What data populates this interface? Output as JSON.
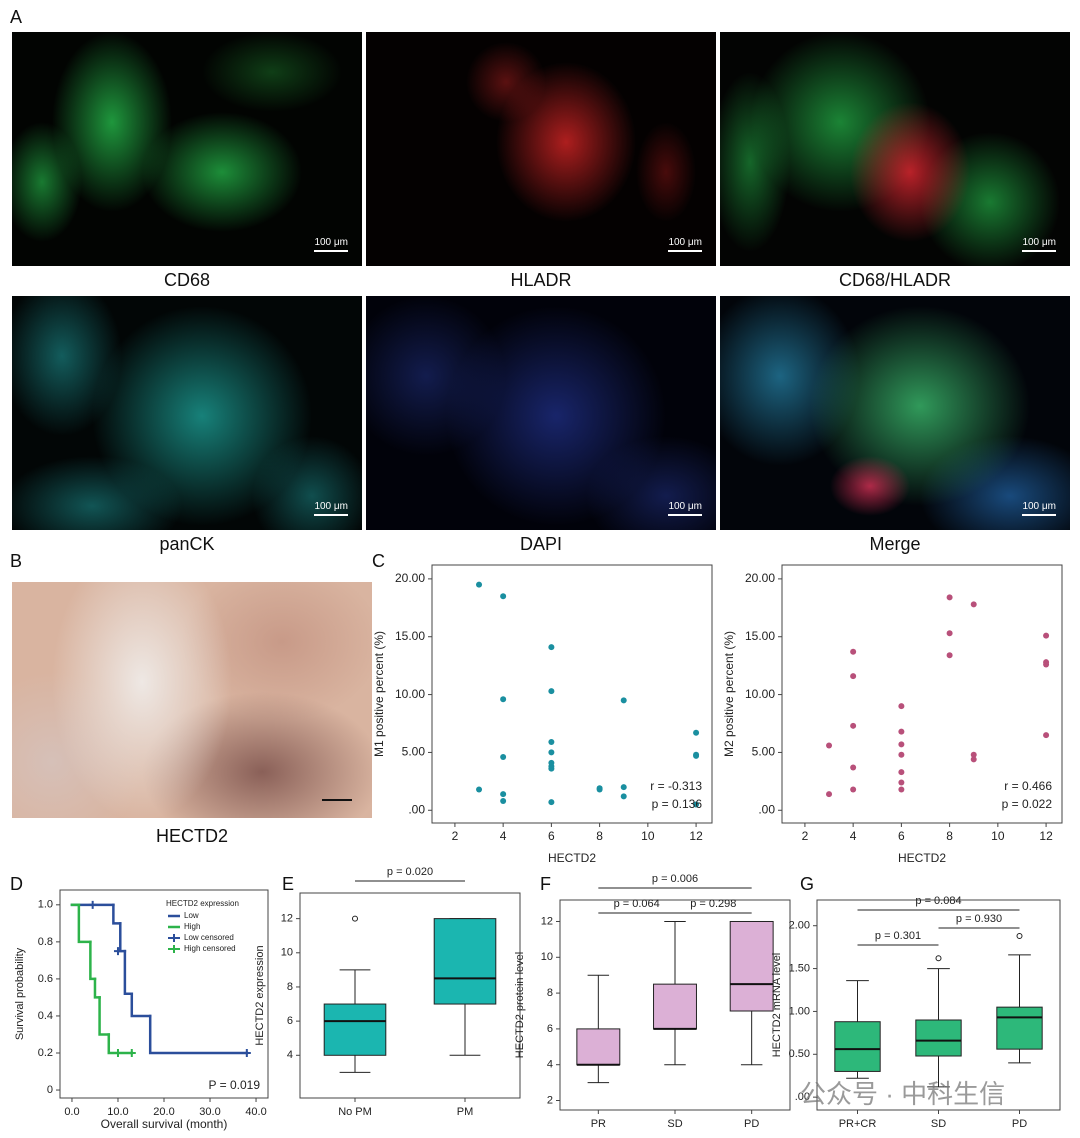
{
  "panel_labels": [
    "A",
    "B",
    "C",
    "D",
    "E",
    "F",
    "G"
  ],
  "images": [
    {
      "caption": "CD68",
      "scale_bar": "100 μm"
    },
    {
      "caption": "HLADR",
      "scale_bar": "100 μm"
    },
    {
      "caption": "CD68/HLADR",
      "scale_bar": "100 μm"
    },
    {
      "caption": "panCK",
      "scale_bar": "100 μm"
    },
    {
      "caption": "DAPI",
      "scale_bar": "100 μm"
    },
    {
      "caption": "Merge",
      "scale_bar": "100 μm"
    }
  ],
  "ihc_image": {
    "caption": "HECTD2"
  },
  "watermark": "公众号 · 中科生信",
  "chart_data": [
    {
      "type": "scatter",
      "x_label": "HECTD2",
      "y_label": "M1 positive percent (%)",
      "color": "#1a8fa0",
      "x": [
        3,
        3,
        4,
        4,
        4,
        4,
        4,
        6,
        6,
        6,
        6,
        6,
        6,
        6,
        6,
        8,
        8,
        9,
        9,
        9,
        12,
        12,
        12,
        12
      ],
      "values": [
        19.5,
        1.8,
        18.5,
        9.6,
        4.6,
        1.4,
        0.8,
        14.1,
        10.3,
        5.9,
        5.0,
        4.1,
        3.8,
        3.6,
        0.7,
        1.9,
        1.8,
        9.5,
        2.0,
        1.2,
        6.7,
        4.8,
        4.7,
        0.5
      ],
      "xlim": [
        1.05,
        12.66
      ],
      "ylim": [
        -1.1,
        21.2
      ],
      "xticks": [
        2,
        4,
        6,
        8,
        10,
        12
      ],
      "yticks": [
        {
          "value": 0,
          "label": ".00"
        },
        {
          "value": 5,
          "label": "5.00"
        },
        {
          "value": 10,
          "label": "10.00"
        },
        {
          "value": 15,
          "label": "15.00"
        },
        {
          "value": 20,
          "label": "20.00"
        }
      ],
      "annotations": [
        "r = -0.313",
        "p = 0.136"
      ]
    },
    {
      "type": "scatter",
      "x_label": "HECTD2",
      "y_label": "M2 positive percent (%)",
      "color": "#b8507a",
      "x": [
        3,
        3,
        4,
        4,
        4,
        4,
        4,
        6,
        6,
        6,
        6,
        6,
        6,
        6,
        8,
        8,
        8,
        9,
        9,
        9,
        12,
        12,
        12,
        12
      ],
      "values": [
        5.6,
        1.4,
        13.7,
        11.6,
        7.3,
        3.7,
        1.8,
        9.0,
        6.8,
        5.7,
        4.8,
        3.3,
        2.4,
        1.8,
        18.4,
        15.3,
        13.4,
        17.8,
        4.8,
        4.4,
        15.1,
        12.8,
        12.6,
        6.5
      ],
      "xlim": [
        1.05,
        12.66
      ],
      "ylim": [
        -1.1,
        21.2
      ],
      "xticks": [
        2,
        4,
        6,
        8,
        10,
        12
      ],
      "yticks": [
        {
          "value": 0,
          "label": ".00"
        },
        {
          "value": 5,
          "label": "5.00"
        },
        {
          "value": 10,
          "label": "10.00"
        },
        {
          "value": 15,
          "label": "15.00"
        },
        {
          "value": 20,
          "label": "20.00"
        }
      ],
      "annotations": [
        "r = 0.466",
        "p = 0.022"
      ]
    },
    {
      "type": "km",
      "x_label": "Overall survival (month)",
      "y_label": "Survival probability",
      "legend_title": "HECTD2 expression",
      "series": [
        {
          "name": "Low",
          "color": "#2b4e9b",
          "style": "step",
          "x": [
            0,
            9,
            10.5,
            11.5,
            13,
            17,
            38
          ],
          "values": [
            1.0,
            0.9,
            0.75,
            0.52,
            0.4,
            0.2,
            0.2
          ]
        },
        {
          "name": "High",
          "color": "#2db34a",
          "style": "step",
          "x": [
            0,
            1.5,
            4,
            5,
            6,
            8,
            13
          ],
          "values": [
            1.0,
            0.8,
            0.6,
            0.5,
            0.3,
            0.2,
            0.2
          ]
        },
        {
          "name": "Low censored",
          "color": "#2b4e9b",
          "style": "censor",
          "x": [
            4.5,
            10,
            38
          ],
          "values": [
            1.0,
            0.75,
            0.2
          ]
        },
        {
          "name": "High censored",
          "color": "#2db34a",
          "style": "censor",
          "x": [
            10,
            13
          ],
          "values": [
            0.2,
            0.2
          ]
        }
      ],
      "xlim": [
        -2.6,
        42.6
      ],
      "ylim": [
        -0.043,
        1.08
      ],
      "xticks": [
        {
          "value": 0,
          "label": "0.0"
        },
        {
          "value": 10,
          "label": "10.0"
        },
        {
          "value": 20,
          "label": "20.0"
        },
        {
          "value": 30,
          "label": "30.0"
        },
        {
          "value": 40,
          "label": "40.0"
        }
      ],
      "yticks": [
        0,
        0.2,
        0.4,
        0.6,
        0.8,
        {
          "value": 1,
          "label": "1.0"
        }
      ],
      "annotations": [
        "P = 0.019"
      ]
    },
    {
      "type": "box",
      "y_label": "HECTD2 expression",
      "color": "#1bb6b0",
      "categories": [
        "No PM",
        "PM"
      ],
      "boxes": [
        {
          "min": 3,
          "q1": 4,
          "median": 6,
          "q3": 7,
          "max": 9,
          "outliers": [
            12
          ]
        },
        {
          "min": 4,
          "q1": 7,
          "median": 8.5,
          "q3": 12,
          "max": 12,
          "outliers": []
        }
      ],
      "ylim": [
        1.5,
        13.5
      ],
      "yticks": [
        4,
        6,
        8,
        10,
        12
      ],
      "p_values": [
        "p = 0.020"
      ]
    },
    {
      "type": "box",
      "y_label": "HECTD2 protein level",
      "color": "#dcb0d6",
      "categories": [
        "PR",
        "SD",
        "PD"
      ],
      "boxes": [
        {
          "min": 3,
          "q1": 4,
          "median": 4,
          "q3": 6,
          "max": 9,
          "outliers": []
        },
        {
          "min": 4,
          "q1": 6,
          "median": 6,
          "q3": 8.5,
          "max": 12,
          "outliers": []
        },
        {
          "min": 4,
          "q1": 7,
          "median": 8.5,
          "q3": 12,
          "max": 12,
          "outliers": []
        }
      ],
      "ylim": [
        1.47,
        13.2
      ],
      "yticks": [
        2,
        4,
        6,
        8,
        10,
        12
      ],
      "p_values": [
        "p = 0.064",
        "p = 0.298",
        "p = 0.006"
      ]
    },
    {
      "type": "box",
      "y_label": "HECTD2 mRNA level",
      "color": "#2db87a",
      "categories": [
        "PR+CR",
        "SD",
        "PD"
      ],
      "boxes": [
        {
          "min": 0.22,
          "q1": 0.3,
          "median": 0.56,
          "q3": 0.88,
          "max": 1.36,
          "outliers": []
        },
        {
          "min": 0.12,
          "q1": 0.48,
          "median": 0.66,
          "q3": 0.9,
          "max": 1.5,
          "outliers": [
            1.62
          ]
        },
        {
          "min": 0.4,
          "q1": 0.56,
          "median": 0.93,
          "q3": 1.05,
          "max": 1.66,
          "outliers": [
            1.88
          ]
        }
      ],
      "ylim": [
        -0.15,
        2.3
      ],
      "yticks": [
        {
          "value": 0,
          "label": ".00"
        },
        {
          "value": 0.5,
          "label": "0.50"
        },
        {
          "value": 1,
          "label": "1.00"
        },
        {
          "value": 1.5,
          "label": "1.50"
        },
        {
          "value": 2,
          "label": "2.00"
        }
      ],
      "p_values": [
        "p = 0.301",
        "p = 0.930",
        "p = 0.084"
      ]
    }
  ]
}
